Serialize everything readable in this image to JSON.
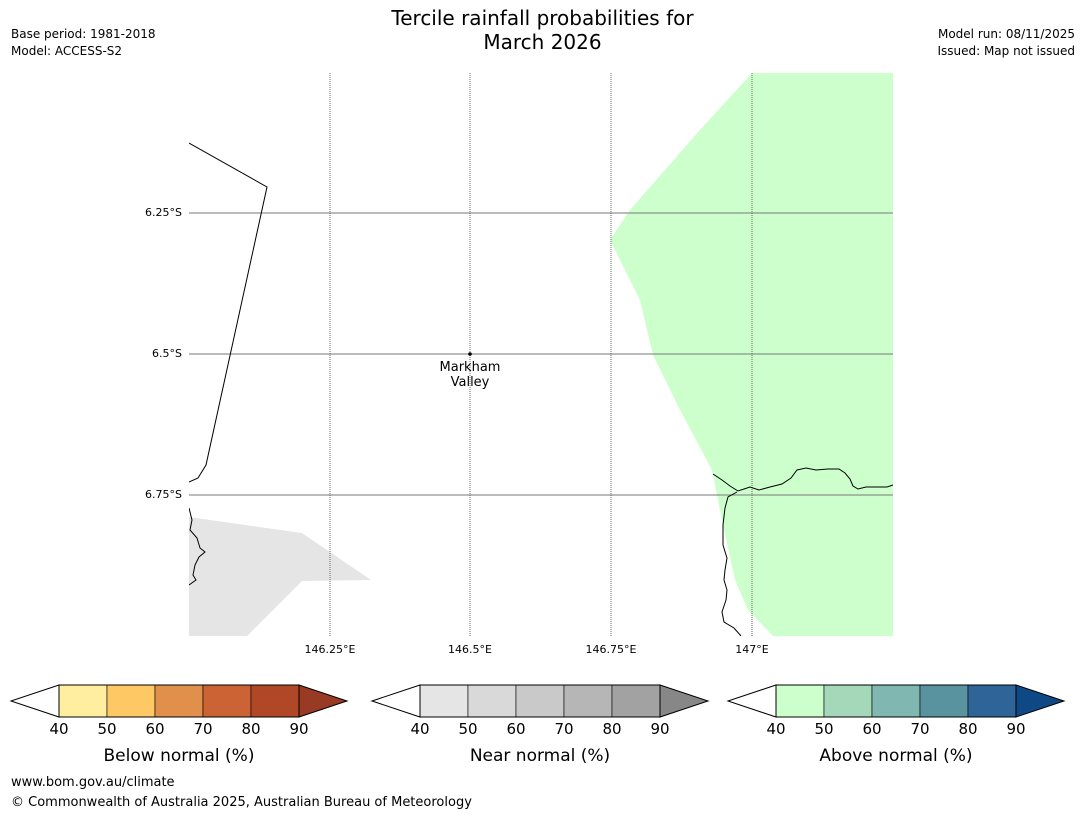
{
  "header": {
    "title_line1": "Tercile rainfall probabilities for",
    "title_line2": "March 2026",
    "base_period": "Base period: 1981-2018",
    "model": "Model: ACCESS-S2",
    "model_run": "Model run: 08/11/2025",
    "issued": "Issued: Map not issued"
  },
  "map": {
    "latitude_labels": [
      "6.25°S",
      "6.5°S",
      "6.75°S"
    ],
    "longitude_labels": [
      "146.25°E",
      "146.5°E",
      "146.75°E",
      "147°E"
    ],
    "places": [
      {
        "name_line1": "Markham",
        "name_line2": "Valley",
        "lon": 146.5,
        "lat": -6.5
      }
    ],
    "shaded_regions": [
      {
        "category": "Above normal",
        "bin": "40-50",
        "color": "#ccffcc"
      },
      {
        "category": "Near normal",
        "bin": "40-50",
        "color": "#e5e5e5"
      }
    ]
  },
  "colorbars": [
    {
      "label": "Below normal (%)",
      "ticks": [
        "40",
        "50",
        "60",
        "70",
        "80",
        "90"
      ],
      "colors": [
        "#ffeda0",
        "#fec965",
        "#e0904a",
        "#cb6334",
        "#b04827",
        "#983a24"
      ]
    },
    {
      "label": "Near normal (%)",
      "ticks": [
        "40",
        "50",
        "60",
        "70",
        "80",
        "90"
      ],
      "colors": [
        "#e5e5e5",
        "#d9d9d9",
        "#c9c9c9",
        "#b6b6b6",
        "#a2a2a2",
        "#878787"
      ]
    },
    {
      "label": "Above normal (%)",
      "ticks": [
        "40",
        "50",
        "60",
        "70",
        "80",
        "90"
      ],
      "colors": [
        "#ccffcc",
        "#a5d8b8",
        "#80b7b0",
        "#5993a0",
        "#2e6497",
        "#0e4986"
      ]
    }
  ],
  "footer": {
    "url": "www.bom.gov.au/climate",
    "copyright": "© Commonwealth of Australia 2025, Australian Bureau of Meteorology"
  }
}
